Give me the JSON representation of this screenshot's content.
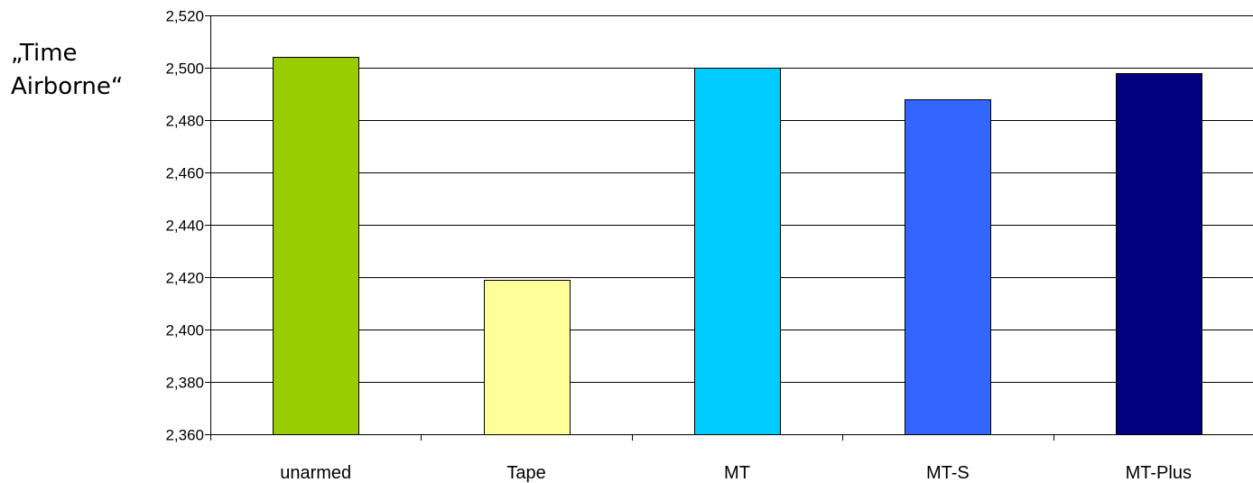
{
  "chart_data": {
    "type": "bar",
    "title": "",
    "xlabel": "",
    "ylabel": [
      "„Time",
      "Airborne“"
    ],
    "categories": [
      "unarmed",
      "Tape",
      "MT",
      "MT-S",
      "MT-Plus"
    ],
    "values": [
      2.504,
      2.419,
      2.5,
      2.488,
      2.498
    ],
    "bar_colors": [
      "#99cc00",
      "#ffff99",
      "#00ccff",
      "#3366ff",
      "#000080"
    ],
    "ylim": [
      2.36,
      2.52
    ],
    "yticks": [
      2.36,
      2.38,
      2.4,
      2.42,
      2.44,
      2.46,
      2.48,
      2.5,
      2.52
    ],
    "ytick_labels": [
      "2,360",
      "2,380",
      "2,400",
      "2,420",
      "2,440",
      "2,460",
      "2,480",
      "2,500",
      "2,520"
    ],
    "grid": true,
    "legend": "none"
  }
}
